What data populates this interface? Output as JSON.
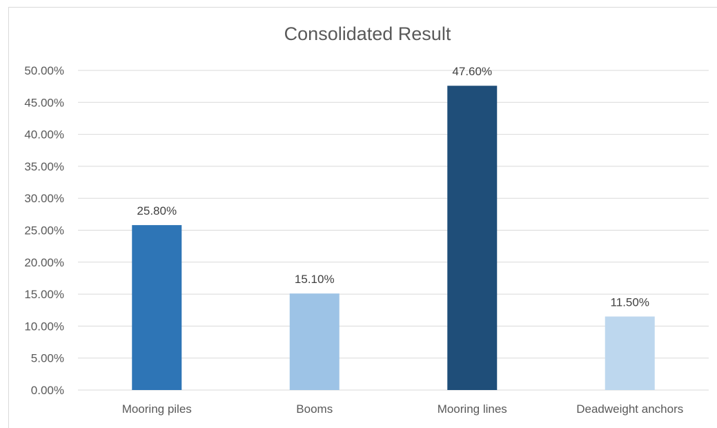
{
  "chart_data": {
    "type": "bar",
    "title": "Consolidated Result",
    "categories": [
      "Mooring piles",
      "Booms",
      "Mooring lines",
      "Deadweight anchors"
    ],
    "values": [
      0.258,
      0.151,
      0.476,
      0.115
    ],
    "data_labels": [
      "25.80%",
      "15.10%",
      "47.60%",
      "11.50%"
    ],
    "bar_colors": [
      "#2e75b6",
      "#9dc3e6",
      "#1f4e79",
      "#bdd7ee"
    ],
    "ylim": [
      0,
      0.5
    ],
    "y_ticks": [
      0,
      0.05,
      0.1,
      0.15,
      0.2,
      0.25,
      0.3,
      0.35,
      0.4,
      0.45,
      0.5
    ],
    "y_tick_labels": [
      "0.00%",
      "5.00%",
      "10.00%",
      "15.00%",
      "20.00%",
      "25.00%",
      "30.00%",
      "35.00%",
      "40.00%",
      "45.00%",
      "50.00%"
    ],
    "grid": true,
    "gridline_color": "#d9d9d9"
  }
}
